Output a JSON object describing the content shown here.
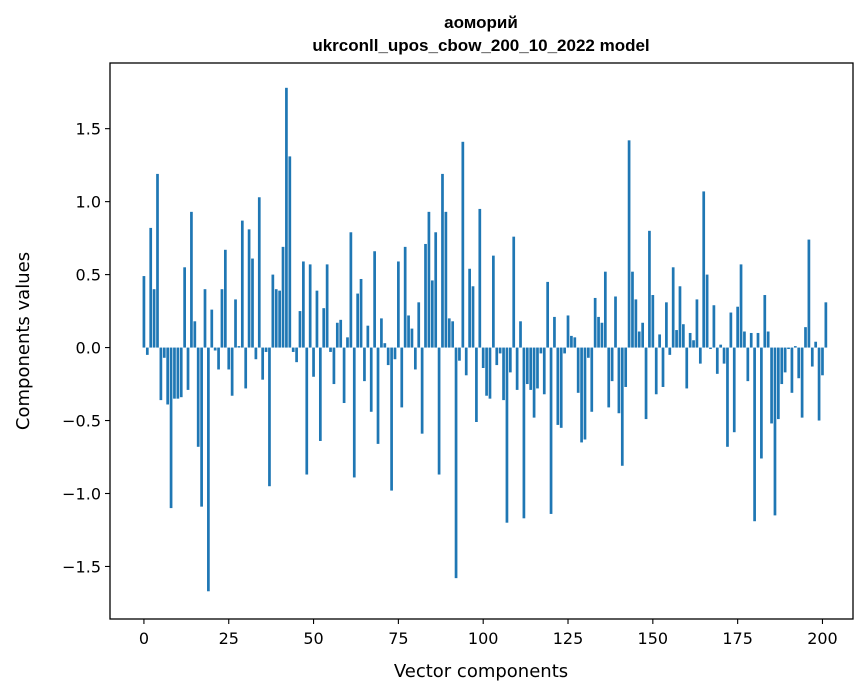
{
  "chart_data": {
    "type": "bar",
    "title_line1": "аоморий",
    "title_line2": "ukrconll_upos_cbow_200_10_2022 model",
    "xlabel": "Vector components",
    "ylabel": "Components values",
    "xlim": [
      -10,
      209
    ],
    "ylim": [
      -1.86,
      1.95
    ],
    "xticks": [
      0,
      25,
      50,
      75,
      100,
      125,
      150,
      175,
      200
    ],
    "yticks": [
      -1.5,
      -1.0,
      -0.5,
      0.0,
      0.5,
      1.0,
      1.5
    ],
    "ytick_labels": [
      "−1.5",
      "−1.0",
      "−0.5",
      "0.0",
      "0.5",
      "1.0",
      "1.5"
    ],
    "bar_color": "#1f77b4",
    "grid": false,
    "values": [
      0.49,
      -0.05,
      0.82,
      0.4,
      1.19,
      -0.36,
      -0.07,
      -0.39,
      -1.1,
      -0.35,
      -0.35,
      -0.34,
      0.55,
      -0.29,
      0.93,
      0.18,
      -0.68,
      -1.09,
      0.4,
      -1.67,
      0.26,
      -0.02,
      -0.15,
      0.4,
      0.67,
      -0.15,
      -0.33,
      0.33,
      0.01,
      0.87,
      -0.28,
      0.81,
      0.61,
      -0.08,
      1.03,
      -0.22,
      -0.03,
      -0.95,
      0.5,
      0.4,
      0.39,
      0.69,
      1.78,
      1.31,
      -0.03,
      -0.1,
      0.25,
      0.59,
      -0.87,
      0.57,
      -0.2,
      0.39,
      -0.64,
      0.27,
      0.57,
      -0.03,
      -0.25,
      0.17,
      0.19,
      -0.38,
      0.07,
      0.79,
      -0.89,
      0.37,
      0.47,
      -0.23,
      0.15,
      -0.44,
      0.66,
      -0.66,
      0.2,
      0.03,
      -0.12,
      -0.98,
      -0.08,
      0.59,
      -0.41,
      0.69,
      0.22,
      0.13,
      -0.15,
      0.31,
      -0.59,
      0.71,
      0.93,
      0.46,
      0.79,
      -0.87,
      1.19,
      0.93,
      0.2,
      0.18,
      -1.58,
      -0.09,
      1.41,
      -0.19,
      0.54,
      0.42,
      -0.51,
      0.95,
      -0.14,
      -0.33,
      -0.35,
      0.63,
      -0.12,
      -0.04,
      -0.36,
      -1.2,
      -0.17,
      0.76,
      -0.29,
      0.18,
      -1.17,
      -0.25,
      -0.29,
      -0.48,
      -0.28,
      -0.04,
      -0.32,
      0.45,
      -1.14,
      0.21,
      -0.53,
      -0.55,
      -0.04,
      0.22,
      0.08,
      0.07,
      -0.31,
      -0.65,
      -0.63,
      -0.07,
      -0.44,
      0.34,
      0.21,
      0.17,
      0.52,
      -0.41,
      -0.23,
      0.35,
      -0.45,
      -0.81,
      -0.27,
      1.42,
      0.52,
      0.33,
      0.11,
      0.17,
      -0.49,
      0.8,
      0.36,
      -0.32,
      0.09,
      -0.27,
      0.31,
      -0.05,
      0.55,
      0.12,
      0.42,
      0.16,
      -0.28,
      0.1,
      0.05,
      0.33,
      -0.11,
      1.07,
      0.5,
      -0.01,
      0.29,
      -0.18,
      0.02,
      -0.11,
      -0.68,
      0.24,
      -0.58,
      0.28,
      0.57,
      0.11,
      -0.23,
      0.1,
      -1.19,
      0.1,
      -0.76,
      0.36,
      0.11,
      -0.52,
      -1.15,
      -0.49,
      -0.25,
      -0.17,
      -0.01,
      -0.31,
      0.01,
      -0.21,
      -0.48,
      0.14,
      0.74,
      -0.13,
      0.04,
      -0.5,
      -0.19,
      0.31
    ]
  }
}
